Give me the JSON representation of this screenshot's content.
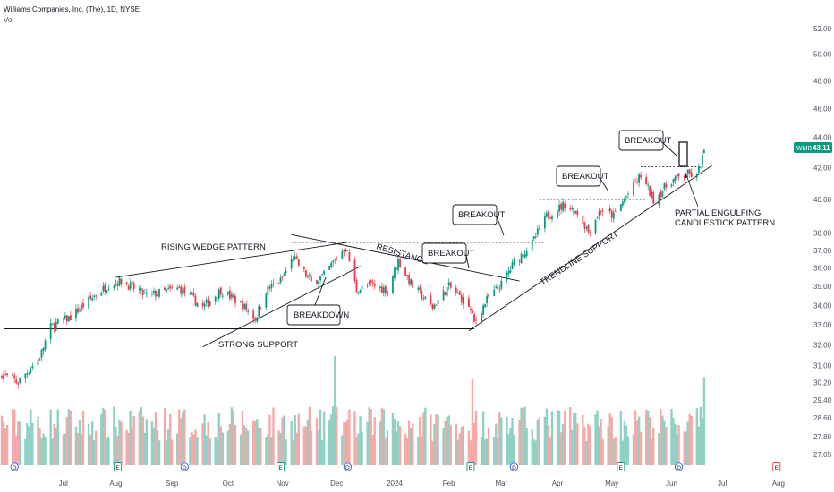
{
  "header": {
    "title": "Williams Companies, Inc. (The), 1D, NYSE",
    "volume_label": "Vol"
  },
  "price_tag": {
    "symbol": "WMB",
    "value": "43.11",
    "color": "#089981"
  },
  "colors": {
    "up": "#089981",
    "down": "#f23645",
    "vol_up": "#8fd1c4",
    "vol_down": "#f7a9a7",
    "line": "#131722"
  },
  "annotations": {
    "rising_wedge": "RISING WEDGE PATTERN",
    "strong_support": "STRONG SUPPORT",
    "breakdown": "BREAKDOWN",
    "resistance": "RESISTANCE",
    "breakout_1": "BREAKOUT",
    "breakout_2": "BREAKOUT",
    "breakout_3": "BREAKOUT",
    "breakout_4": "BREAKOUT",
    "trendline_support": "TRENDLINE SUPPORT",
    "engulfing_line1": "PARTIAL ENGULFING",
    "engulfing_line2": "CANDLESTICK PATTERN"
  },
  "event_markers": [
    {
      "label": "D",
      "date": "2023-06-06"
    },
    {
      "label": "E",
      "date": "2023-08-02"
    },
    {
      "label": "D",
      "date": "2023-09-08"
    },
    {
      "label": "E",
      "date": "2023-10-31"
    },
    {
      "label": "D",
      "date": "2023-12-07"
    },
    {
      "label": "E",
      "date": "2024-02-13"
    },
    {
      "label": "D",
      "date": "2024-03-08"
    },
    {
      "label": "E",
      "date": "2024-05-06"
    },
    {
      "label": "D",
      "date": "2024-06-07"
    },
    {
      "label": "E",
      "date": "2024-07-31"
    }
  ],
  "chart_data": {
    "type": "candlestick",
    "x_range": [
      "2023-05-29",
      "2024-08-08"
    ],
    "y_axis": {
      "ticks": [
        27.05,
        27.8,
        28.6,
        29.4,
        30.2,
        31.0,
        32.0,
        33.0,
        34.0,
        35.0,
        36.0,
        37.0,
        38.0,
        40.0,
        42.0,
        44.0,
        46.0,
        48.0,
        50.0,
        52.0
      ],
      "scale": "log",
      "range": [
        26.6,
        53.6
      ],
      "position": "right"
    },
    "x_axis": {
      "ticks": [
        {
          "label": "Jul",
          "date": "2023-07-03"
        },
        {
          "label": "Aug",
          "date": "2023-08-01"
        },
        {
          "label": "Sep",
          "date": "2023-09-01"
        },
        {
          "label": "Oct",
          "date": "2023-10-02"
        },
        {
          "label": "Nov",
          "date": "2023-11-01"
        },
        {
          "label": "Dec",
          "date": "2023-12-01"
        },
        {
          "label": "2024",
          "date": "2024-01-02"
        },
        {
          "label": "Feb",
          "date": "2024-02-01"
        },
        {
          "label": "Mar",
          "date": "2024-03-01"
        },
        {
          "label": "Apr",
          "date": "2024-04-01"
        },
        {
          "label": "May",
          "date": "2024-05-01"
        },
        {
          "label": "Jun",
          "date": "2024-06-03"
        },
        {
          "label": "Jul",
          "date": "2024-07-01"
        },
        {
          "label": "Aug",
          "date": "2024-08-01"
        }
      ]
    },
    "close_path": [
      {
        "date": "2023-05-30",
        "close": 30.6
      },
      {
        "date": "2023-06-08",
        "close": 30.2
      },
      {
        "date": "2023-06-20",
        "close": 31.4
      },
      {
        "date": "2023-06-26",
        "close": 32.9
      },
      {
        "date": "2023-07-07",
        "close": 33.4
      },
      {
        "date": "2023-07-20",
        "close": 34.5
      },
      {
        "date": "2023-07-28",
        "close": 35.1
      },
      {
        "date": "2023-08-04",
        "close": 35.3
      },
      {
        "date": "2023-08-18",
        "close": 34.5
      },
      {
        "date": "2023-09-05",
        "close": 34.9
      },
      {
        "date": "2023-09-18",
        "close": 33.9
      },
      {
        "date": "2023-09-28",
        "close": 34.8
      },
      {
        "date": "2023-10-10",
        "close": 34.0
      },
      {
        "date": "2023-10-17",
        "close": 33.3
      },
      {
        "date": "2023-10-23",
        "close": 34.8
      },
      {
        "date": "2023-10-31",
        "close": 35.3
      },
      {
        "date": "2023-11-07",
        "close": 36.6
      },
      {
        "date": "2023-11-17",
        "close": 35.2
      },
      {
        "date": "2023-11-24",
        "close": 35.6
      },
      {
        "date": "2023-12-01",
        "close": 36.6
      },
      {
        "date": "2023-12-06",
        "close": 37.2
      },
      {
        "date": "2023-12-12",
        "close": 34.8
      },
      {
        "date": "2023-12-20",
        "close": 35.1
      },
      {
        "date": "2023-12-29",
        "close": 34.8
      },
      {
        "date": "2024-01-04",
        "close": 36.4
      },
      {
        "date": "2024-01-12",
        "close": 35.0
      },
      {
        "date": "2024-01-23",
        "close": 33.9
      },
      {
        "date": "2024-02-01",
        "close": 35.0
      },
      {
        "date": "2024-02-12",
        "close": 34.0
      },
      {
        "date": "2024-02-15",
        "close": 33.1
      },
      {
        "date": "2024-02-22",
        "close": 34.3
      },
      {
        "date": "2024-03-01",
        "close": 35.1
      },
      {
        "date": "2024-03-08",
        "close": 36.3
      },
      {
        "date": "2024-03-18",
        "close": 37.4
      },
      {
        "date": "2024-03-26",
        "close": 39.0
      },
      {
        "date": "2024-04-05",
        "close": 39.7
      },
      {
        "date": "2024-04-12",
        "close": 39.2
      },
      {
        "date": "2024-04-18",
        "close": 38.1
      },
      {
        "date": "2024-04-25",
        "close": 39.4
      },
      {
        "date": "2024-05-02",
        "close": 39.0
      },
      {
        "date": "2024-05-09",
        "close": 40.2
      },
      {
        "date": "2024-05-17",
        "close": 41.5
      },
      {
        "date": "2024-05-24",
        "close": 40.0
      },
      {
        "date": "2024-06-03",
        "close": 41.2
      },
      {
        "date": "2024-06-12",
        "close": 41.6
      },
      {
        "date": "2024-06-17",
        "close": 41.4
      },
      {
        "date": "2024-06-21",
        "close": 43.1
      }
    ],
    "volume_highlights": [
      {
        "date": "2023-11-30",
        "relative": 1.0
      },
      {
        "date": "2024-02-14",
        "relative": 0.79
      },
      {
        "date": "2024-06-21",
        "relative": 0.8
      }
    ],
    "trendlines": [
      {
        "name": "rising_wedge_upper",
        "from": {
          "date": "2023-08-01",
          "price": 35.5
        },
        "to": {
          "date": "2023-12-07",
          "price": 37.45
        }
      },
      {
        "name": "rising_wedge_lower",
        "from": {
          "date": "2023-09-18",
          "price": 31.9
        },
        "to": {
          "date": "2023-12-14",
          "price": 36.1
        }
      },
      {
        "name": "strong_support",
        "from": {
          "date": "2023-05-31",
          "price": 32.8
        },
        "to": {
          "date": "2024-02-15",
          "price": 32.8
        }
      },
      {
        "name": "resistance_falling",
        "from": {
          "date": "2023-11-06",
          "price": 37.9
        },
        "to": {
          "date": "2024-03-11",
          "price": 35.3
        }
      },
      {
        "name": "trendline_support",
        "from": {
          "date": "2024-02-12",
          "price": 32.7
        },
        "to": {
          "date": "2024-06-26",
          "price": 42.2
        }
      }
    ],
    "horizontal_levels": [
      {
        "price": 37.45,
        "from": "2023-11-06",
        "to": "2024-03-25"
      },
      {
        "price": 40.0,
        "from": "2024-03-22",
        "to": "2024-05-20"
      },
      {
        "price": 42.05,
        "from": "2024-05-17",
        "to": "2024-06-21"
      }
    ]
  }
}
